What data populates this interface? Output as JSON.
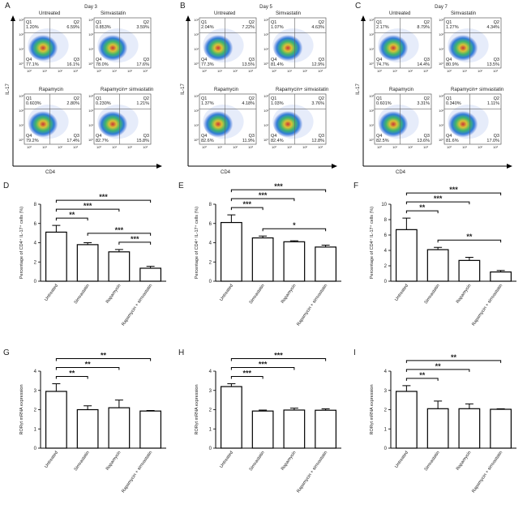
{
  "flow": {
    "y_axis_label": "IL-17",
    "x_axis_label": "CD4",
    "axis_ticks": [
      "10⁰",
      "10¹",
      "10²",
      "10³"
    ],
    "panels": [
      {
        "letter": "A",
        "day": "Day 3",
        "plots": [
          {
            "name": "Untreated",
            "quadrants": [
              {
                "name": "Q1",
                "value": "1.20%"
              },
              {
                "name": "Q2",
                "value": "6.59%"
              },
              {
                "name": "Q3",
                "value": "16.1%"
              },
              {
                "name": "Q4",
                "value": "77.1%"
              }
            ]
          },
          {
            "name": "Simvastatin",
            "quadrants": [
              {
                "name": "Q1",
                "value": "0.853%"
              },
              {
                "name": "Q2",
                "value": "3.59%"
              },
              {
                "name": "Q3",
                "value": "17.6%"
              },
              {
                "name": "Q4",
                "value": "78.0%"
              }
            ]
          },
          {
            "name": "Rapamycin",
            "quadrants": [
              {
                "name": "Q1",
                "value": "0.603%"
              },
              {
                "name": "Q2",
                "value": "2.80%"
              },
              {
                "name": "Q3",
                "value": "17.4%"
              },
              {
                "name": "Q4",
                "value": "79.2%"
              }
            ]
          },
          {
            "name": "Rapamycin+ simvastatin",
            "quadrants": [
              {
                "name": "Q1",
                "value": "0.230%"
              },
              {
                "name": "Q2",
                "value": "1.21%"
              },
              {
                "name": "Q3",
                "value": "15.8%"
              },
              {
                "name": "Q4",
                "value": "82.7%"
              }
            ]
          }
        ]
      },
      {
        "letter": "B",
        "day": "Day 5",
        "plots": [
          {
            "name": "Untreated",
            "quadrants": [
              {
                "name": "Q1",
                "value": "2.04%"
              },
              {
                "name": "Q2",
                "value": "7.22%"
              },
              {
                "name": "Q3",
                "value": "13.5%"
              },
              {
                "name": "Q4",
                "value": "77.3%"
              }
            ]
          },
          {
            "name": "Simvastatin",
            "quadrants": [
              {
                "name": "Q1",
                "value": "1.07%"
              },
              {
                "name": "Q2",
                "value": "4.63%"
              },
              {
                "name": "Q3",
                "value": "12.9%"
              },
              {
                "name": "Q4",
                "value": "81.4%"
              }
            ]
          },
          {
            "name": "Rapamycin",
            "quadrants": [
              {
                "name": "Q1",
                "value": "1.37%"
              },
              {
                "name": "Q2",
                "value": "4.18%"
              },
              {
                "name": "Q3",
                "value": "11.9%"
              },
              {
                "name": "Q4",
                "value": "82.6%"
              }
            ]
          },
          {
            "name": "Rapamycin+ simvastatin",
            "quadrants": [
              {
                "name": "Q1",
                "value": "1.03%"
              },
              {
                "name": "Q2",
                "value": "3.76%"
              },
              {
                "name": "Q3",
                "value": "12.8%"
              },
              {
                "name": "Q4",
                "value": "82.4%"
              }
            ]
          }
        ]
      },
      {
        "letter": "C",
        "day": "Day 7",
        "plots": [
          {
            "name": "Untreated",
            "quadrants": [
              {
                "name": "Q1",
                "value": "2.17%"
              },
              {
                "name": "Q2",
                "value": "8.79%"
              },
              {
                "name": "Q3",
                "value": "14.4%"
              },
              {
                "name": "Q4",
                "value": "74.7%"
              }
            ]
          },
          {
            "name": "Simvastatin",
            "quadrants": [
              {
                "name": "Q1",
                "value": "1.27%"
              },
              {
                "name": "Q2",
                "value": "4.34%"
              },
              {
                "name": "Q3",
                "value": "13.5%"
              },
              {
                "name": "Q4",
                "value": "80.9%"
              }
            ]
          },
          {
            "name": "Rapamycin",
            "quadrants": [
              {
                "name": "Q1",
                "value": "0.601%"
              },
              {
                "name": "Q2",
                "value": "3.31%"
              },
              {
                "name": "Q3",
                "value": "13.6%"
              },
              {
                "name": "Q4",
                "value": "82.5%"
              }
            ]
          },
          {
            "name": "Rapamycin+ simvastatin",
            "quadrants": [
              {
                "name": "Q1",
                "value": "0.340%"
              },
              {
                "name": "Q2",
                "value": "1.11%"
              },
              {
                "name": "Q3",
                "value": "17.0%"
              },
              {
                "name": "Q4",
                "value": "81.6%"
              }
            ]
          }
        ]
      }
    ]
  },
  "chart_data": [
    {
      "type": "bar",
      "letter": "D",
      "y_label": "Percentage of CD4⁺ IL-17⁺ cells (%)",
      "categories": [
        "Untreated",
        "Simvastatin",
        "Rapamycin",
        "Rapamycin + simvastatin"
      ],
      "values": [
        5.1,
        3.8,
        3.05,
        1.35
      ],
      "errors": [
        0.7,
        0.2,
        0.25,
        0.2
      ],
      "ylim": [
        0,
        8
      ],
      "yticks": [
        0,
        2,
        4,
        6,
        8
      ],
      "color": "#ffffff",
      "brackets": [
        {
          "label": "***",
          "between": [
            "Untreated",
            "Rapamycin + simvastatin"
          ]
        },
        {
          "label": "***",
          "between": [
            "Untreated",
            "Rapamycin"
          ]
        },
        {
          "label": "**",
          "between": [
            "Untreated",
            "Simvastatin"
          ]
        },
        {
          "label": "***",
          "between": [
            "Simvastatin",
            "Rapamycin + simvastatin"
          ]
        },
        {
          "label": "***",
          "between": [
            "Rapamycin",
            "Rapamycin + simvastatin"
          ]
        }
      ]
    },
    {
      "type": "bar",
      "letter": "E",
      "y_label": "Percentage of CD4⁺ IL-17⁺ cells (%)",
      "categories": [
        "Untreated",
        "Simvastatin",
        "Rapamycin",
        "Rapamycin + simvastatin"
      ],
      "values": [
        6.1,
        4.5,
        4.1,
        3.55
      ],
      "errors": [
        0.8,
        0.2,
        0.1,
        0.2
      ],
      "ylim": [
        0,
        8
      ],
      "yticks": [
        0,
        2,
        4,
        6,
        8
      ],
      "color": "#ffffff",
      "brackets": [
        {
          "label": "***",
          "between": [
            "Untreated",
            "Rapamycin + simvastatin"
          ]
        },
        {
          "label": "***",
          "between": [
            "Untreated",
            "Rapamycin"
          ]
        },
        {
          "label": "***",
          "between": [
            "Untreated",
            "Simvastatin"
          ]
        },
        {
          "label": "*",
          "between": [
            "Simvastatin",
            "Rapamycin + simvastatin"
          ]
        }
      ]
    },
    {
      "type": "bar",
      "letter": "F",
      "y_label": "Percentage of CD4⁺ IL-17⁺ cells (%)",
      "categories": [
        "Untreated",
        "Simvastatin",
        "Rapamycin",
        "Rapamycin + simvastatin"
      ],
      "values": [
        6.7,
        4.1,
        2.7,
        1.2
      ],
      "errors": [
        1.5,
        0.3,
        0.4,
        0.2
      ],
      "ylim": [
        0,
        10
      ],
      "yticks": [
        0,
        2,
        4,
        6,
        8,
        10
      ],
      "color": "#ffffff",
      "brackets": [
        {
          "label": "***",
          "between": [
            "Untreated",
            "Rapamycin + simvastatin"
          ]
        },
        {
          "label": "***",
          "between": [
            "Untreated",
            "Rapamycin"
          ]
        },
        {
          "label": "**",
          "between": [
            "Untreated",
            "Simvastatin"
          ]
        },
        {
          "label": "**",
          "between": [
            "Simvastatin",
            "Rapamycin + simvastatin"
          ]
        }
      ]
    },
    {
      "type": "bar",
      "letter": "G",
      "y_label": "RORγt mRNA expression",
      "categories": [
        "Untreated",
        "Simvastatin",
        "Rapamycin",
        "Rapamycin + simvastatin"
      ],
      "values": [
        2.95,
        2.0,
        2.1,
        1.93
      ],
      "errors": [
        0.4,
        0.2,
        0.4,
        0.03
      ],
      "ylim": [
        0,
        4
      ],
      "yticks": [
        0,
        1,
        2,
        3,
        4
      ],
      "color": "#ffffff",
      "brackets": [
        {
          "label": "**",
          "between": [
            "Untreated",
            "Rapamycin + simvastatin"
          ]
        },
        {
          "label": "**",
          "between": [
            "Untreated",
            "Rapamycin"
          ]
        },
        {
          "label": "**",
          "between": [
            "Untreated",
            "Simvastatin"
          ]
        }
      ]
    },
    {
      "type": "bar",
      "letter": "H",
      "y_label": "RORγt mRNA expression",
      "categories": [
        "Untreated",
        "Simvastatin",
        "Rapamycin",
        "Rapamycin + simvastatin"
      ],
      "values": [
        3.2,
        1.93,
        1.98,
        1.97
      ],
      "errors": [
        0.15,
        0.05,
        0.1,
        0.07
      ],
      "ylim": [
        0,
        4
      ],
      "yticks": [
        0,
        1,
        2,
        3,
        4
      ],
      "color": "#ffffff",
      "brackets": [
        {
          "label": "***",
          "between": [
            "Untreated",
            "Rapamycin + simvastatin"
          ]
        },
        {
          "label": "***",
          "between": [
            "Untreated",
            "Rapamycin"
          ]
        },
        {
          "label": "***",
          "between": [
            "Untreated",
            "Simvastatin"
          ]
        }
      ]
    },
    {
      "type": "bar",
      "letter": "I",
      "y_label": "RORγt mRNA expression",
      "categories": [
        "Untreated",
        "Simvastatin",
        "Rapamycin",
        "Rapamycin + simvastatin"
      ],
      "values": [
        2.95,
        2.05,
        2.05,
        2.02
      ],
      "errors": [
        0.3,
        0.4,
        0.25,
        0.03
      ],
      "ylim": [
        0,
        4
      ],
      "yticks": [
        0,
        1,
        2,
        3,
        4
      ],
      "color": "#ffffff",
      "brackets": [
        {
          "label": "**",
          "between": [
            "Untreated",
            "Rapamycin + simvastatin"
          ]
        },
        {
          "label": "**",
          "between": [
            "Untreated",
            "Rapamycin"
          ]
        },
        {
          "label": "**",
          "between": [
            "Untreated",
            "Simvastatin"
          ]
        }
      ]
    }
  ]
}
